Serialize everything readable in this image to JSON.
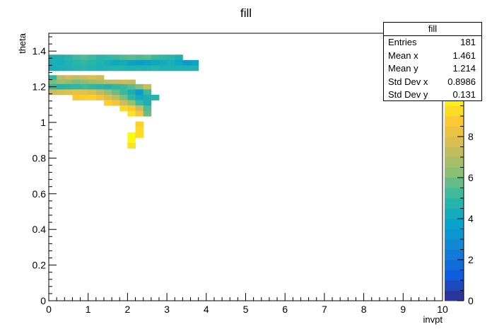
{
  "title": "fill",
  "xlabel": "invpt",
  "ylabel": "theta",
  "stats": {
    "name": "fill",
    "rows": [
      {
        "label": "Entries",
        "value": "181"
      },
      {
        "label": "Mean x",
        "value": "1.461"
      },
      {
        "label": "Mean y",
        "value": "1.214"
      },
      {
        "label": "Std Dev x",
        "value": "0.8986"
      },
      {
        "label": "Std Dev y",
        "value": "0.131"
      }
    ]
  },
  "chart_data": {
    "type": "heatmap",
    "title": "fill",
    "xlabel": "invpt",
    "ylabel": "theta",
    "xlim": [
      0,
      10
    ],
    "ylim": [
      0,
      1.5
    ],
    "zlim": [
      0,
      10
    ],
    "x_ticks": [
      "0",
      "1",
      "2",
      "3",
      "4",
      "5",
      "6",
      "7",
      "8",
      "9",
      "10"
    ],
    "y_ticks": [
      "0",
      "0.2",
      "0.4",
      "0.6",
      "0.8",
      "1",
      "1.2",
      "1.4"
    ],
    "z_ticks": [
      "0",
      "2",
      "4",
      "6",
      "8"
    ],
    "grid": false,
    "colorbar": "right",
    "bin_width_x": 0.2,
    "bin_height_y": 0.03,
    "cells": [
      {
        "x": 0.0,
        "y": 1.365,
        "v": 4.5
      },
      {
        "x": 0.2,
        "y": 1.365,
        "v": 4.5
      },
      {
        "x": 0.4,
        "y": 1.365,
        "v": 4.8
      },
      {
        "x": 0.6,
        "y": 1.365,
        "v": 5.2
      },
      {
        "x": 0.8,
        "y": 1.365,
        "v": 5.4
      },
      {
        "x": 1.0,
        "y": 1.365,
        "v": 5.2
      },
      {
        "x": 1.2,
        "y": 1.365,
        "v": 4.8
      },
      {
        "x": 1.4,
        "y": 1.365,
        "v": 5.0
      },
      {
        "x": 1.6,
        "y": 1.365,
        "v": 5.2
      },
      {
        "x": 1.8,
        "y": 1.365,
        "v": 5.4
      },
      {
        "x": 2.0,
        "y": 1.365,
        "v": 5.6
      },
      {
        "x": 2.2,
        "y": 1.365,
        "v": 5.4
      },
      {
        "x": 2.4,
        "y": 1.365,
        "v": 5.6
      },
      {
        "x": 2.6,
        "y": 1.365,
        "v": 5.2
      },
      {
        "x": 2.8,
        "y": 1.365,
        "v": 5.0
      },
      {
        "x": 3.0,
        "y": 1.365,
        "v": 4.8
      },
      {
        "x": 3.2,
        "y": 1.365,
        "v": 4.5
      },
      {
        "x": 0.0,
        "y": 1.335,
        "v": 4.5
      },
      {
        "x": 0.2,
        "y": 1.335,
        "v": 4.3
      },
      {
        "x": 0.4,
        "y": 1.335,
        "v": 4.6
      },
      {
        "x": 0.6,
        "y": 1.335,
        "v": 4.8
      },
      {
        "x": 0.8,
        "y": 1.335,
        "v": 5.0
      },
      {
        "x": 1.0,
        "y": 1.335,
        "v": 4.8
      },
      {
        "x": 1.2,
        "y": 1.335,
        "v": 4.6
      },
      {
        "x": 1.4,
        "y": 1.335,
        "v": 4.3
      },
      {
        "x": 1.6,
        "y": 1.335,
        "v": 4.0
      },
      {
        "x": 1.8,
        "y": 1.335,
        "v": 4.2
      },
      {
        "x": 2.0,
        "y": 1.335,
        "v": 3.8
      },
      {
        "x": 2.2,
        "y": 1.335,
        "v": 3.5
      },
      {
        "x": 2.4,
        "y": 1.335,
        "v": 3.8
      },
      {
        "x": 2.6,
        "y": 1.335,
        "v": 4.0
      },
      {
        "x": 2.8,
        "y": 1.335,
        "v": 4.2
      },
      {
        "x": 3.0,
        "y": 1.335,
        "v": 4.4
      },
      {
        "x": 3.2,
        "y": 1.335,
        "v": 4.0
      },
      {
        "x": 3.4,
        "y": 1.335,
        "v": 3.5
      },
      {
        "x": 3.6,
        "y": 1.335,
        "v": 3.8
      },
      {
        "x": 0.0,
        "y": 1.305,
        "v": 4.3
      },
      {
        "x": 0.2,
        "y": 1.305,
        "v": 4.5
      },
      {
        "x": 0.4,
        "y": 1.305,
        "v": 4.6
      },
      {
        "x": 0.6,
        "y": 1.305,
        "v": 4.7
      },
      {
        "x": 0.8,
        "y": 1.305,
        "v": 4.8
      },
      {
        "x": 1.0,
        "y": 1.305,
        "v": 4.7
      },
      {
        "x": 1.2,
        "y": 1.305,
        "v": 4.6
      },
      {
        "x": 1.4,
        "y": 1.305,
        "v": 4.7
      },
      {
        "x": 1.6,
        "y": 1.305,
        "v": 4.8
      },
      {
        "x": 1.8,
        "y": 1.305,
        "v": 4.7
      },
      {
        "x": 2.0,
        "y": 1.305,
        "v": 4.6
      },
      {
        "x": 2.2,
        "y": 1.305,
        "v": 4.7
      },
      {
        "x": 2.4,
        "y": 1.305,
        "v": 4.6
      },
      {
        "x": 2.6,
        "y": 1.305,
        "v": 4.8
      },
      {
        "x": 2.8,
        "y": 1.305,
        "v": 4.6
      },
      {
        "x": 3.0,
        "y": 1.305,
        "v": 4.6
      },
      {
        "x": 3.2,
        "y": 1.305,
        "v": 4.6
      },
      {
        "x": 3.4,
        "y": 1.305,
        "v": 4.6
      },
      {
        "x": 3.6,
        "y": 1.305,
        "v": 4.6
      },
      {
        "x": 0.0,
        "y": 1.25,
        "v": 5.0
      },
      {
        "x": 0.2,
        "y": 1.25,
        "v": 7.0
      },
      {
        "x": 0.4,
        "y": 1.25,
        "v": 7.5
      },
      {
        "x": 0.6,
        "y": 1.25,
        "v": 7.2
      },
      {
        "x": 0.8,
        "y": 1.25,
        "v": 7.5
      },
      {
        "x": 1.0,
        "y": 1.25,
        "v": 7.8
      },
      {
        "x": 1.2,
        "y": 1.25,
        "v": 7.5
      },
      {
        "x": 0.0,
        "y": 1.225,
        "v": 6.0
      },
      {
        "x": 0.2,
        "y": 1.225,
        "v": 6.5
      },
      {
        "x": 0.4,
        "y": 1.225,
        "v": 6.3
      },
      {
        "x": 0.6,
        "y": 1.225,
        "v": 6.0
      },
      {
        "x": 0.8,
        "y": 1.225,
        "v": 6.2
      },
      {
        "x": 1.0,
        "y": 1.225,
        "v": 6.5
      },
      {
        "x": 1.2,
        "y": 1.225,
        "v": 6.8
      },
      {
        "x": 1.4,
        "y": 1.225,
        "v": 7.0
      },
      {
        "x": 1.6,
        "y": 1.225,
        "v": 7.2
      },
      {
        "x": 1.8,
        "y": 1.225,
        "v": 7.5
      },
      {
        "x": 2.0,
        "y": 1.225,
        "v": 7.3
      },
      {
        "x": 0.0,
        "y": 1.2,
        "v": 5.0
      },
      {
        "x": 0.2,
        "y": 1.2,
        "v": 4.6
      },
      {
        "x": 0.4,
        "y": 1.2,
        "v": 4.8
      },
      {
        "x": 0.6,
        "y": 1.2,
        "v": 5.0
      },
      {
        "x": 0.8,
        "y": 1.2,
        "v": 5.2
      },
      {
        "x": 1.0,
        "y": 1.2,
        "v": 5.0
      },
      {
        "x": 1.2,
        "y": 1.2,
        "v": 4.8
      },
      {
        "x": 1.4,
        "y": 1.2,
        "v": 4.6
      },
      {
        "x": 1.6,
        "y": 1.2,
        "v": 5.0
      },
      {
        "x": 1.8,
        "y": 1.2,
        "v": 5.2
      },
      {
        "x": 2.0,
        "y": 1.2,
        "v": 5.6
      },
      {
        "x": 2.2,
        "y": 1.2,
        "v": 6.2
      },
      {
        "x": 2.4,
        "y": 1.2,
        "v": 7.5
      },
      {
        "x": 0.0,
        "y": 1.17,
        "v": 7.5
      },
      {
        "x": 0.2,
        "y": 1.17,
        "v": 7.8
      },
      {
        "x": 0.4,
        "y": 1.17,
        "v": 8.0
      },
      {
        "x": 0.6,
        "y": 1.17,
        "v": 8.2
      },
      {
        "x": 0.8,
        "y": 1.17,
        "v": 8.0
      },
      {
        "x": 1.0,
        "y": 1.17,
        "v": 7.8
      },
      {
        "x": 1.2,
        "y": 1.17,
        "v": 7.2
      },
      {
        "x": 1.4,
        "y": 1.17,
        "v": 6.5
      },
      {
        "x": 1.6,
        "y": 1.17,
        "v": 5.8
      },
      {
        "x": 1.8,
        "y": 1.17,
        "v": 5.2
      },
      {
        "x": 2.0,
        "y": 1.17,
        "v": 4.4
      },
      {
        "x": 2.2,
        "y": 1.17,
        "v": 3.5
      },
      {
        "x": 2.4,
        "y": 1.17,
        "v": 5.2
      },
      {
        "x": 0.6,
        "y": 1.14,
        "v": 8.8
      },
      {
        "x": 0.8,
        "y": 1.14,
        "v": 8.9
      },
      {
        "x": 1.0,
        "y": 1.14,
        "v": 9.0
      },
      {
        "x": 1.2,
        "y": 1.14,
        "v": 8.5
      },
      {
        "x": 1.4,
        "y": 1.14,
        "v": 7.8
      },
      {
        "x": 1.6,
        "y": 1.14,
        "v": 7.0
      },
      {
        "x": 1.8,
        "y": 1.14,
        "v": 6.0
      },
      {
        "x": 2.0,
        "y": 1.14,
        "v": 5.0
      },
      {
        "x": 2.2,
        "y": 1.14,
        "v": 4.2
      },
      {
        "x": 2.4,
        "y": 1.14,
        "v": 4.5
      },
      {
        "x": 2.6,
        "y": 1.14,
        "v": 4.8
      },
      {
        "x": 1.4,
        "y": 1.11,
        "v": 9.0
      },
      {
        "x": 1.6,
        "y": 1.11,
        "v": 8.6
      },
      {
        "x": 1.8,
        "y": 1.11,
        "v": 7.5
      },
      {
        "x": 2.0,
        "y": 1.11,
        "v": 6.5
      },
      {
        "x": 2.2,
        "y": 1.11,
        "v": 5.2
      },
      {
        "x": 2.4,
        "y": 1.11,
        "v": 4.5
      },
      {
        "x": 1.8,
        "y": 1.08,
        "v": 9.2
      },
      {
        "x": 2.0,
        "y": 1.08,
        "v": 8.8
      },
      {
        "x": 2.2,
        "y": 1.08,
        "v": 7.5
      },
      {
        "x": 2.4,
        "y": 1.08,
        "v": 5.5
      },
      {
        "x": 2.0,
        "y": 1.05,
        "v": 9.4
      },
      {
        "x": 2.2,
        "y": 1.05,
        "v": 8.5
      },
      {
        "x": 2.4,
        "y": 1.05,
        "v": 5.8
      },
      {
        "x": 2.2,
        "y": 0.99,
        "v": 9.0
      },
      {
        "x": 2.2,
        "y": 0.96,
        "v": 9.2
      },
      {
        "x": 2.0,
        "y": 0.93,
        "v": 10.0
      },
      {
        "x": 2.2,
        "y": 0.93,
        "v": 9.3
      },
      {
        "x": 2.0,
        "y": 0.9,
        "v": 10.0
      },
      {
        "x": 2.0,
        "y": 0.87,
        "v": 9.4
      }
    ]
  }
}
